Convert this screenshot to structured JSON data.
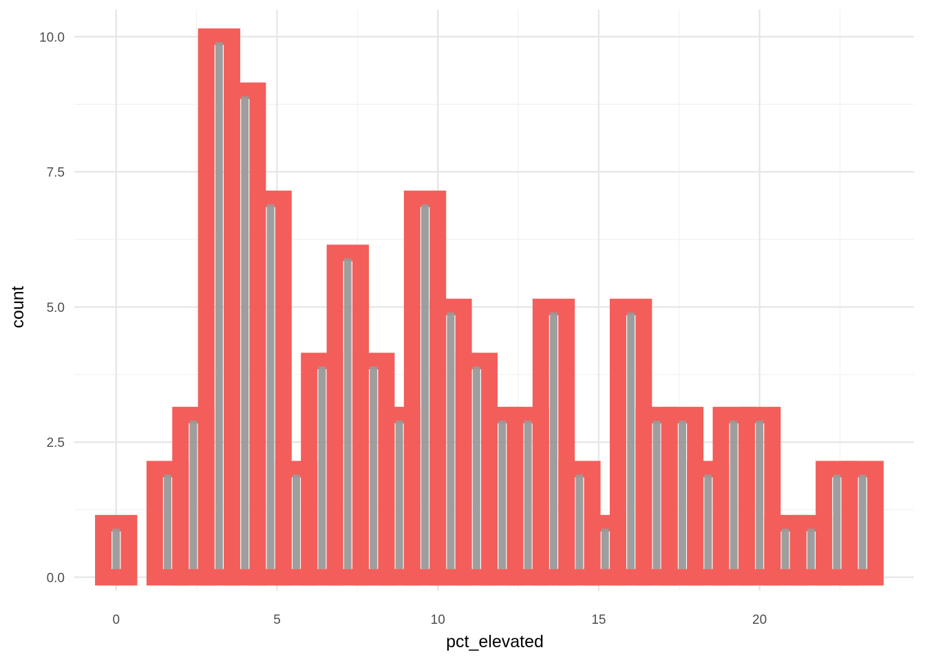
{
  "chart_data": {
    "type": "bar",
    "subtype": "histogram",
    "xlabel": "pct_elevated",
    "ylabel": "count",
    "xlim": [
      -1.3,
      24.8
    ],
    "ylim": [
      -0.25,
      10.5
    ],
    "x_ticks": [
      0,
      5,
      10,
      15,
      20
    ],
    "x_tick_labels": [
      "0",
      "5",
      "10",
      "15",
      "20"
    ],
    "y_ticks": [
      0,
      2.5,
      5,
      7.5,
      10
    ],
    "y_tick_labels": [
      "0.0",
      "2.5",
      "5.0",
      "7.5",
      "10.0"
    ],
    "grid": true,
    "bin_width": 0.8,
    "bin_centers": [
      0,
      0.8,
      1.6,
      2.4,
      3.2,
      4.0,
      4.8,
      5.6,
      6.4,
      7.2,
      8.0,
      8.8,
      9.6,
      10.4,
      11.2,
      12.0,
      12.8,
      13.6,
      14.4,
      15.2,
      16.0,
      16.8,
      17.6,
      18.4,
      19.2,
      20.0,
      20.8,
      21.6,
      22.4,
      23.2
    ],
    "values": [
      1,
      0,
      2,
      3,
      10,
      9,
      7,
      2,
      4,
      6,
      4,
      3,
      7,
      5,
      4,
      3,
      3,
      5,
      2,
      1,
      5,
      3,
      3,
      2,
      3,
      3,
      1,
      1,
      2,
      2
    ],
    "outline_color": "#f35e5a",
    "fill_color": "#999999"
  }
}
